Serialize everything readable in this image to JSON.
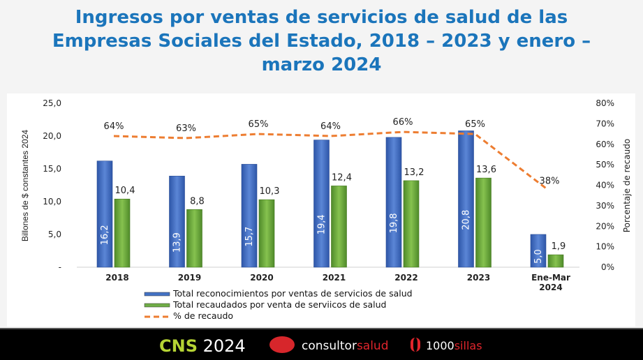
{
  "title": "Ingresos por ventas de servicios de salud de las Empresas Sociales del Estado, 2018 – 2023 y enero – marzo 2024",
  "title_lines": [
    "Ingresos por ventas de servicios de salud de las",
    "Empresas Sociales del Estado, 2018 – 2023 y enero –",
    "marzo 2024"
  ],
  "chart_data": {
    "type": "bar",
    "categories": [
      "2018",
      "2019",
      "2020",
      "2021",
      "2022",
      "2023",
      "Ene-Mar 2024"
    ],
    "category_lines": [
      [
        "2018"
      ],
      [
        "2019"
      ],
      [
        "2020"
      ],
      [
        "2021"
      ],
      [
        "2022"
      ],
      [
        "2023"
      ],
      [
        "Ene-Mar",
        "2024"
      ]
    ],
    "series": [
      {
        "name": "Total reconocimientos por ventas de servicios de salud",
        "type": "bar",
        "axis": "left",
        "color": "#4472c4",
        "values": [
          16.2,
          13.9,
          15.7,
          19.4,
          19.8,
          20.8,
          5.0
        ],
        "labels": [
          "16,2",
          "13,9",
          "15,7",
          "19,4",
          "19,8",
          "20,8",
          "5,0"
        ]
      },
      {
        "name": "Total recaudados por venta de serviicos de salud",
        "type": "bar",
        "axis": "left",
        "color": "#70ad47",
        "values": [
          10.4,
          8.8,
          10.3,
          12.4,
          13.2,
          13.6,
          1.9
        ],
        "labels": [
          "10,4",
          "8,8",
          "10,3",
          "12,4",
          "13,2",
          "13,6",
          "1,9"
        ]
      },
      {
        "name": "% de recaudo",
        "type": "line",
        "style": "dashed",
        "axis": "right",
        "color": "#ed7d31",
        "values": [
          64,
          63,
          65,
          64,
          66,
          65,
          38
        ],
        "labels": [
          "64%",
          "63%",
          "65%",
          "64%",
          "66%",
          "65%",
          "38%"
        ]
      }
    ],
    "ylabel": "Billones de $ constantes 2024",
    "ylim": [
      0,
      25
    ],
    "yticks": [
      "-",
      "5,0",
      "10,0",
      "15,0",
      "20,0",
      "25,0"
    ],
    "y2label": "Porcentaje de recaudo",
    "y2lim": [
      0,
      80
    ],
    "y2ticks": [
      "0%",
      "10%",
      "20%",
      "30%",
      "40%",
      "50%",
      "60%",
      "70%",
      "80%"
    ],
    "grid": false,
    "legend": "bottom"
  },
  "footer": {
    "cns_a": "CNS",
    "cns_b": "2024",
    "cs_a": "consultor",
    "cs_b": "salud",
    "ms_a": "1000",
    "ms_b": "sillas"
  }
}
